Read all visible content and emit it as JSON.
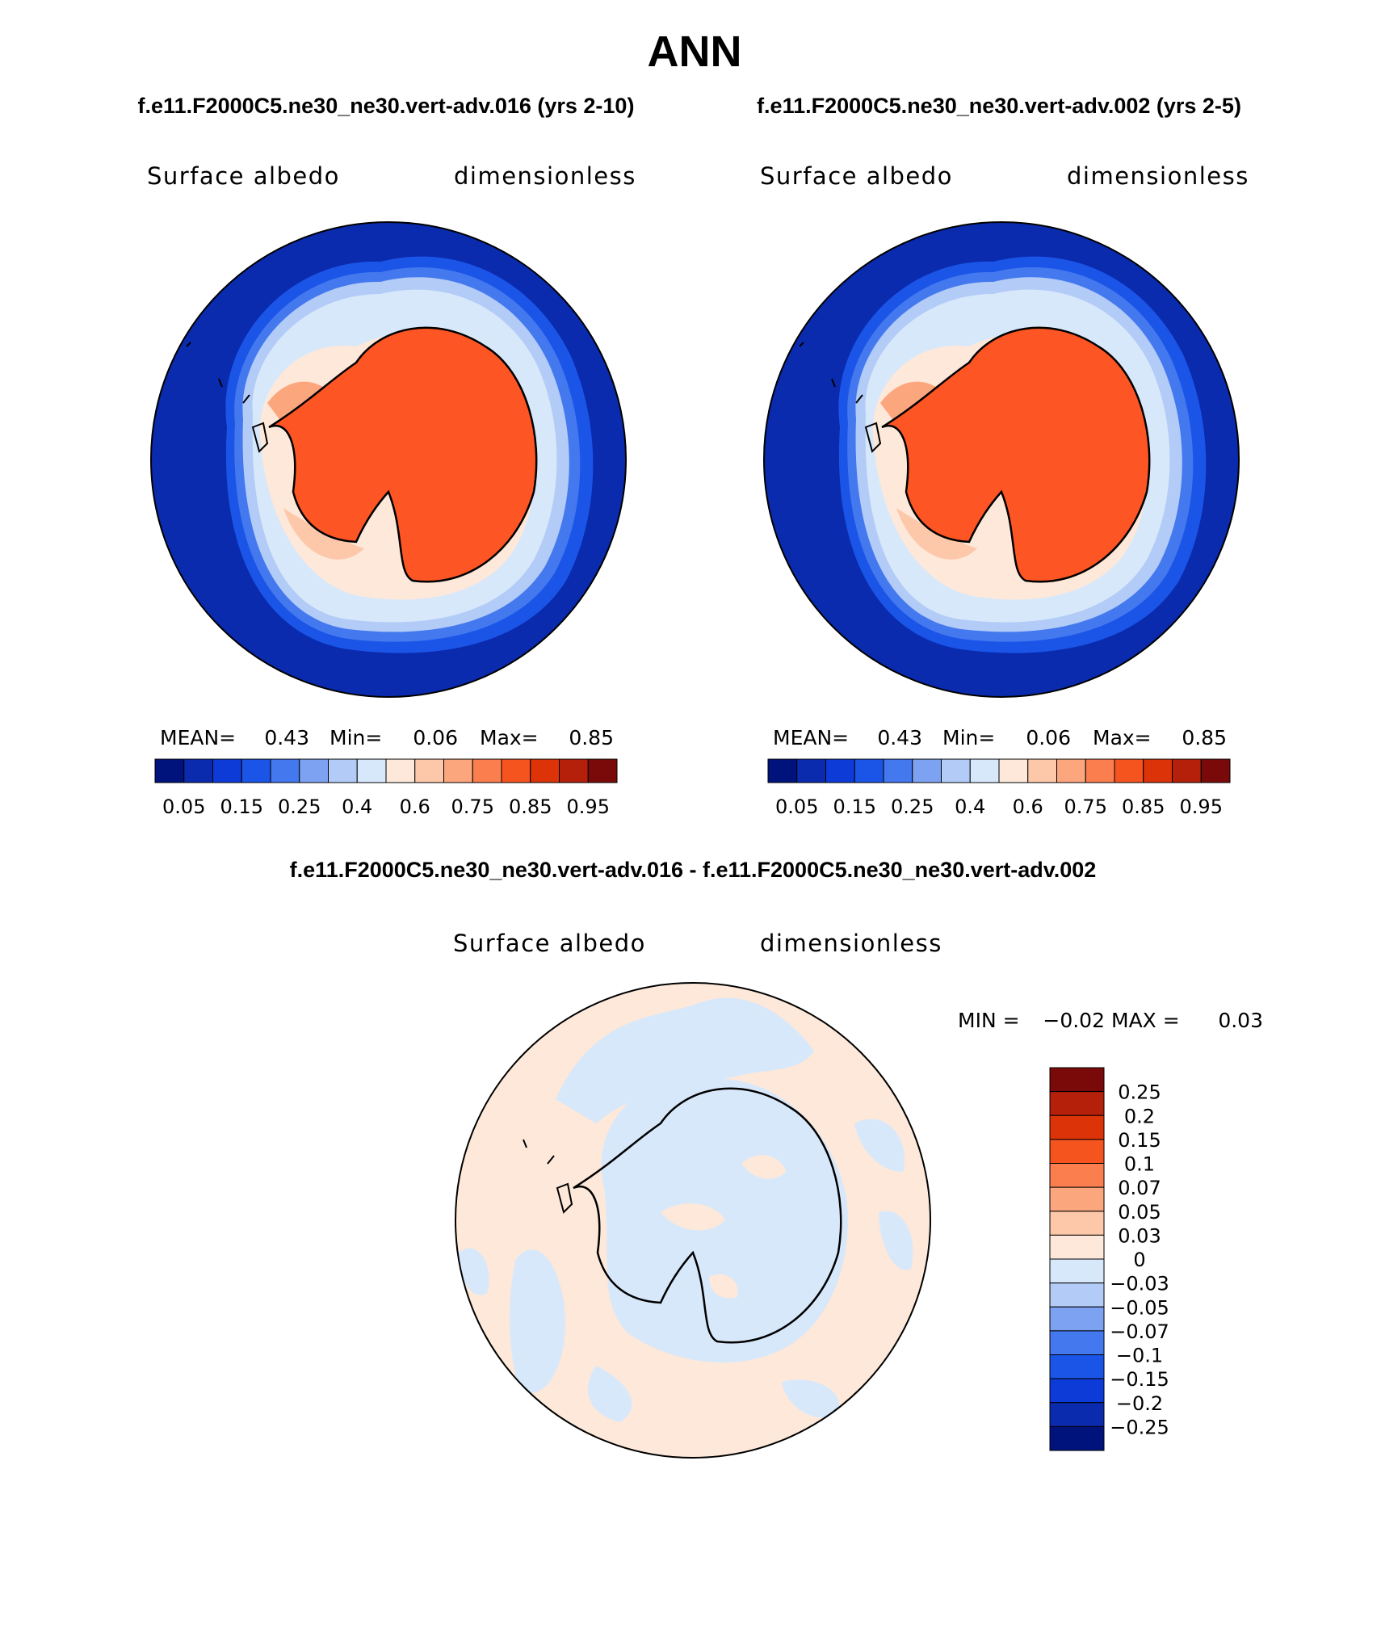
{
  "title": "ANN",
  "panels": [
    {
      "header": "f.e11.F2000C5.ne30_ne30.vert-adv.016 (yrs 2-10)",
      "left_label": "Surface albedo",
      "right_label": "dimensionless",
      "stats": {
        "mean_label": "MEAN=",
        "mean": "0.43",
        "min_label": "Min=",
        "min": "0.06",
        "max_label": "Max=",
        "max": "0.85"
      },
      "colorbar_ticks": [
        "0.05",
        "0.15",
        "0.25",
        "0.4",
        "0.6",
        "0.75",
        "0.85",
        "0.95"
      ]
    },
    {
      "header": "f.e11.F2000C5.ne30_ne30.vert-adv.002 (yrs 2-5)",
      "left_label": "Surface albedo",
      "right_label": "dimensionless",
      "stats": {
        "mean_label": "MEAN=",
        "mean": "0.43",
        "min_label": "Min=",
        "min": "0.06",
        "max_label": "Max=",
        "max": "0.85"
      },
      "colorbar_ticks": [
        "0.05",
        "0.15",
        "0.25",
        "0.4",
        "0.6",
        "0.75",
        "0.85",
        "0.95"
      ]
    }
  ],
  "diff": {
    "header": "f.e11.F2000C5.ne30_ne30.vert-adv.016 - f.e11.F2000C5.ne30_ne30.vert-adv.002",
    "left_label": "Surface albedo",
    "right_label": "dimensionless",
    "stats": {
      "min_label": "MIN =",
      "min": "−0.02",
      "max_label": "MAX =",
      "max": "0.03"
    },
    "colorbar_ticks": [
      "0.25",
      "0.2",
      "0.15",
      "0.1",
      "0.07",
      "0.05",
      "0.03",
      "0",
      "−0.03",
      "−0.05",
      "−0.07",
      "−0.1",
      "−0.15",
      "−0.2",
      "−0.25"
    ]
  },
  "colors": {
    "albedo_scale": [
      "#00137c",
      "#0a2bae",
      "#0d3bd8",
      "#1a55e8",
      "#4478ee",
      "#7ea2f2",
      "#b2cbf7",
      "#d8e8fb",
      "#fde8d9",
      "#fdc8aa",
      "#fca67e",
      "#fb7e4f",
      "#f5541f",
      "#dd3308",
      "#b4200a",
      "#7a0a0a"
    ],
    "diff_scale_top_to_bottom": [
      "#7a0a0a",
      "#b4200a",
      "#dd3308",
      "#f5541f",
      "#fb7e4f",
      "#fca67e",
      "#fdc8aa",
      "#fde8d9",
      "#d8e8fb",
      "#b2cbf7",
      "#7ea2f2",
      "#4478ee",
      "#1a55e8",
      "#0d3bd8",
      "#0a2bae",
      "#00137c"
    ],
    "land": "#fd5524",
    "ocean": "#0a2bae"
  }
}
